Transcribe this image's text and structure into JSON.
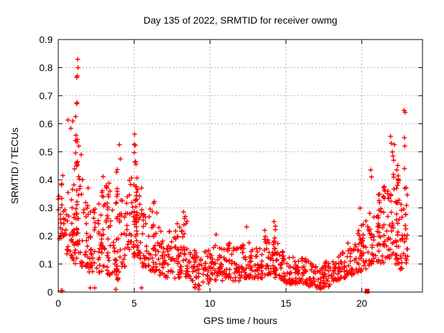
{
  "chart": {
    "title": "Day 135 of 2022, SRMTID for receiver owmg",
    "xlabel": "GPS time / hours",
    "ylabel": "SRMTID / TECUs"
  },
  "chart_data": {
    "type": "scatter",
    "title": "Day 135 of 2022, SRMTID for receiver owmg",
    "xlabel": "GPS time / hours",
    "ylabel": "SRMTID / TECUs",
    "xlim": [
      0,
      24
    ],
    "ylim": [
      0,
      0.9
    ],
    "xticks": [
      0,
      5,
      10,
      15,
      20
    ],
    "yticks": [
      0,
      0.1,
      0.2,
      0.3,
      0.4,
      0.5,
      0.6,
      0.7,
      0.8,
      0.9
    ],
    "grid": true,
    "legend": "none",
    "marker": "plus",
    "marker_color": "#ff0000",
    "grid_color": "#b0b0b0",
    "frame_color": "#000000",
    "seed": 20220135,
    "description": "Dense red scatter of SRMTID values vs GPS time; high variability 0.1-0.45 TECUs during hours 0-6 with spikes to 0.83 near 1.2h and 0.59 near 5h, quiet midday band 0.03-0.18 TECUs from 9h-18h, rising again after 19h with spikes to 0.55 near 22h and 0.64 near 22.8h; isolated square marker at 20.35h near zero.",
    "bands": [
      [
        0.0,
        0.5,
        22,
        0.19,
        0.32
      ],
      [
        0.0,
        0.3,
        6,
        0.33,
        0.43
      ],
      [
        0.5,
        1.0,
        26,
        0.12,
        0.38
      ],
      [
        1.0,
        1.5,
        30,
        0.1,
        0.45
      ],
      [
        1.5,
        2.0,
        30,
        0.09,
        0.42
      ],
      [
        2.0,
        2.5,
        26,
        0.07,
        0.3
      ],
      [
        2.5,
        3.0,
        26,
        0.07,
        0.38
      ],
      [
        3.0,
        3.5,
        26,
        0.06,
        0.4
      ],
      [
        3.5,
        4.0,
        24,
        0.04,
        0.3
      ],
      [
        4.0,
        4.5,
        22,
        0.09,
        0.35
      ],
      [
        4.5,
        5.0,
        26,
        0.12,
        0.42
      ],
      [
        5.0,
        5.5,
        28,
        0.12,
        0.4
      ],
      [
        5.5,
        6.0,
        26,
        0.09,
        0.3
      ],
      [
        6.0,
        6.5,
        26,
        0.07,
        0.3
      ],
      [
        6.5,
        7.0,
        24,
        0.06,
        0.25
      ],
      [
        7.0,
        7.5,
        24,
        0.05,
        0.22
      ],
      [
        7.5,
        8.0,
        24,
        0.05,
        0.25
      ],
      [
        8.0,
        8.5,
        24,
        0.05,
        0.28
      ],
      [
        8.5,
        9.0,
        22,
        0.04,
        0.18
      ],
      [
        9.0,
        9.5,
        22,
        0.015,
        0.15
      ],
      [
        9.5,
        10.0,
        22,
        0.03,
        0.16
      ],
      [
        10.0,
        10.5,
        24,
        0.04,
        0.17
      ],
      [
        10.5,
        11.0,
        24,
        0.04,
        0.17
      ],
      [
        11.0,
        11.5,
        24,
        0.05,
        0.18
      ],
      [
        11.5,
        12.0,
        24,
        0.04,
        0.16
      ],
      [
        12.0,
        12.5,
        24,
        0.05,
        0.17
      ],
      [
        12.5,
        13.0,
        24,
        0.05,
        0.18
      ],
      [
        13.0,
        13.5,
        24,
        0.05,
        0.17
      ],
      [
        13.5,
        14.0,
        24,
        0.06,
        0.2
      ],
      [
        14.0,
        14.5,
        24,
        0.05,
        0.18
      ],
      [
        14.5,
        15.0,
        24,
        0.04,
        0.15
      ],
      [
        15.0,
        15.5,
        24,
        0.03,
        0.13
      ],
      [
        15.5,
        16.0,
        24,
        0.03,
        0.12
      ],
      [
        16.0,
        16.5,
        24,
        0.03,
        0.12
      ],
      [
        16.5,
        17.0,
        24,
        0.02,
        0.11
      ],
      [
        17.0,
        17.5,
        24,
        0.015,
        0.1
      ],
      [
        17.5,
        18.0,
        24,
        0.02,
        0.11
      ],
      [
        18.0,
        18.5,
        22,
        0.04,
        0.13
      ],
      [
        18.5,
        19.0,
        22,
        0.05,
        0.15
      ],
      [
        19.0,
        19.5,
        22,
        0.06,
        0.18
      ],
      [
        19.5,
        20.0,
        22,
        0.07,
        0.22
      ],
      [
        20.0,
        20.5,
        22,
        0.08,
        0.26
      ],
      [
        20.5,
        21.0,
        22,
        0.1,
        0.3
      ],
      [
        21.0,
        21.5,
        26,
        0.1,
        0.36
      ],
      [
        21.5,
        22.0,
        26,
        0.12,
        0.38
      ],
      [
        22.0,
        22.5,
        28,
        0.1,
        0.42
      ],
      [
        22.5,
        23.1,
        26,
        0.08,
        0.35
      ]
    ],
    "spikes": [
      [
        1.2,
        24,
        0.12,
        0.72
      ],
      [
        2.9,
        8,
        0.1,
        0.42
      ],
      [
        3.3,
        8,
        0.1,
        0.45
      ],
      [
        3.85,
        14,
        0.03,
        0.45
      ],
      [
        5.05,
        16,
        0.15,
        0.585
      ],
      [
        5.15,
        10,
        0.18,
        0.52
      ],
      [
        6.3,
        6,
        0.1,
        0.33
      ],
      [
        8.3,
        6,
        0.08,
        0.29
      ],
      [
        14.25,
        9,
        0.13,
        0.29
      ],
      [
        19.95,
        10,
        0.12,
        0.3
      ],
      [
        21.1,
        10,
        0.14,
        0.42
      ],
      [
        21.45,
        8,
        0.15,
        0.4
      ],
      [
        22.35,
        14,
        0.12,
        0.46
      ],
      [
        22.9,
        8,
        0.1,
        0.38
      ]
    ],
    "outliers": [
      [
        0.18,
        0.005
      ],
      [
        0.28,
        0.005
      ],
      [
        0.64,
        0.613
      ],
      [
        0.82,
        0.584
      ],
      [
        0.95,
        0.61
      ],
      [
        1.14,
        0.54
      ],
      [
        1.22,
        0.765
      ],
      [
        1.26,
        0.77
      ],
      [
        1.28,
        0.83
      ],
      [
        1.31,
        0.8
      ],
      [
        1.35,
        0.52
      ],
      [
        1.5,
        0.49
      ],
      [
        2.1,
        0.015
      ],
      [
        2.4,
        0.015
      ],
      [
        3.8,
        0.01
      ],
      [
        4.03,
        0.525
      ],
      [
        4.1,
        0.475
      ],
      [
        5.48,
        0.015
      ],
      [
        9.25,
        0.01
      ],
      [
        10.4,
        0.205
      ],
      [
        12.4,
        0.233
      ],
      [
        13.6,
        0.22
      ],
      [
        17.3,
        0.012
      ],
      [
        20.6,
        0.435
      ],
      [
        20.63,
        0.41
      ],
      [
        21.9,
        0.555
      ],
      [
        21.95,
        0.53
      ],
      [
        22.0,
        0.5
      ],
      [
        22.05,
        0.485
      ],
      [
        22.1,
        0.47
      ],
      [
        22.15,
        0.525
      ],
      [
        22.78,
        0.648
      ],
      [
        22.86,
        0.64
      ],
      [
        22.8,
        0.55
      ],
      [
        22.83,
        0.52
      ],
      [
        22.81,
        0.44
      ]
    ],
    "special_points": [
      {
        "x": 20.35,
        "y": 0.003,
        "marker": "square"
      }
    ]
  }
}
